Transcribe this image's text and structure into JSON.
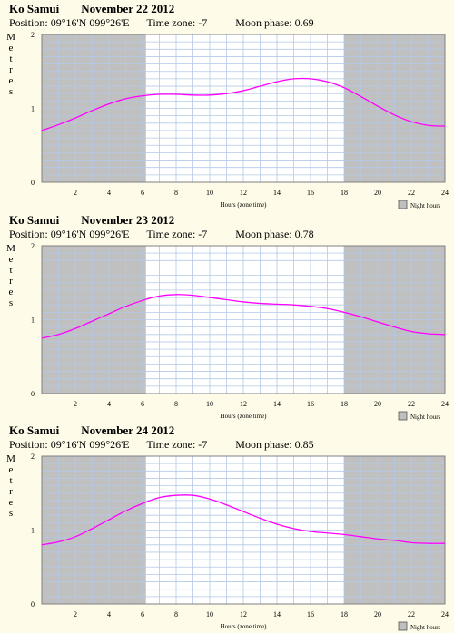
{
  "location": "Ko Samui",
  "position_label": "Position:",
  "position": "09°16'N 099°26'E",
  "timezone_label": "Time zone:",
  "timezone": "-7",
  "moon_label": "Moon phase:",
  "y_axis_label": "Metres",
  "x_axis_label": "Hours (zone time)",
  "legend_label": "Night hours",
  "colors": {
    "night": "#c0c0c0",
    "grid": "#b4c8e6",
    "curve": "#ff00ff",
    "legend_box": "#bfbfbf"
  },
  "chart_data": [
    {
      "type": "line",
      "date": "November 22 2012",
      "moon_phase": "0.69",
      "xlim": [
        0,
        24
      ],
      "ylim": [
        0,
        2
      ],
      "xticks": [
        2,
        4,
        6,
        8,
        10,
        12,
        14,
        16,
        18,
        20,
        22,
        24
      ],
      "yticks": [
        0,
        1,
        2
      ],
      "night_hours": [
        [
          0,
          6.2
        ],
        [
          18,
          24
        ]
      ],
      "x": [
        0,
        1,
        2,
        3,
        4,
        5,
        6,
        7,
        8,
        9,
        10,
        11,
        12,
        13,
        14,
        15,
        16,
        17,
        18,
        19,
        20,
        21,
        22,
        23,
        24
      ],
      "y": [
        0.7,
        0.78,
        0.87,
        0.97,
        1.06,
        1.13,
        1.17,
        1.19,
        1.19,
        1.18,
        1.18,
        1.2,
        1.24,
        1.3,
        1.36,
        1.4,
        1.4,
        1.36,
        1.28,
        1.16,
        1.03,
        0.91,
        0.82,
        0.77,
        0.76
      ]
    },
    {
      "type": "line",
      "date": "November 23 2012",
      "moon_phase": "0.78",
      "xlim": [
        0,
        24
      ],
      "ylim": [
        0,
        2
      ],
      "xticks": [
        2,
        4,
        6,
        8,
        10,
        12,
        14,
        16,
        18,
        20,
        22,
        24
      ],
      "yticks": [
        0,
        1,
        2
      ],
      "night_hours": [
        [
          0,
          6.2
        ],
        [
          18,
          24
        ]
      ],
      "x": [
        0,
        1,
        2,
        3,
        4,
        5,
        6,
        7,
        8,
        9,
        10,
        11,
        12,
        13,
        14,
        15,
        16,
        17,
        18,
        19,
        20,
        21,
        22,
        23,
        24
      ],
      "y": [
        0.75,
        0.8,
        0.88,
        0.98,
        1.08,
        1.18,
        1.26,
        1.32,
        1.34,
        1.33,
        1.3,
        1.27,
        1.24,
        1.22,
        1.21,
        1.2,
        1.18,
        1.15,
        1.1,
        1.04,
        0.97,
        0.9,
        0.84,
        0.81,
        0.8
      ]
    },
    {
      "type": "line",
      "date": "November 24 2012",
      "moon_phase": "0.85",
      "xlim": [
        0,
        24
      ],
      "ylim": [
        0,
        2
      ],
      "xticks": [
        2,
        4,
        6,
        8,
        10,
        12,
        14,
        16,
        18,
        20,
        22,
        24
      ],
      "yticks": [
        0,
        1,
        2
      ],
      "night_hours": [
        [
          0,
          6.2
        ],
        [
          18,
          24
        ]
      ],
      "x": [
        0,
        1,
        2,
        3,
        4,
        5,
        6,
        7,
        8,
        9,
        10,
        11,
        12,
        13,
        14,
        15,
        16,
        17,
        18,
        19,
        20,
        21,
        22,
        23,
        24
      ],
      "y": [
        0.8,
        0.84,
        0.91,
        1.02,
        1.14,
        1.26,
        1.36,
        1.44,
        1.47,
        1.47,
        1.42,
        1.34,
        1.25,
        1.16,
        1.08,
        1.02,
        0.98,
        0.96,
        0.94,
        0.91,
        0.88,
        0.86,
        0.83,
        0.82,
        0.82
      ]
    }
  ]
}
